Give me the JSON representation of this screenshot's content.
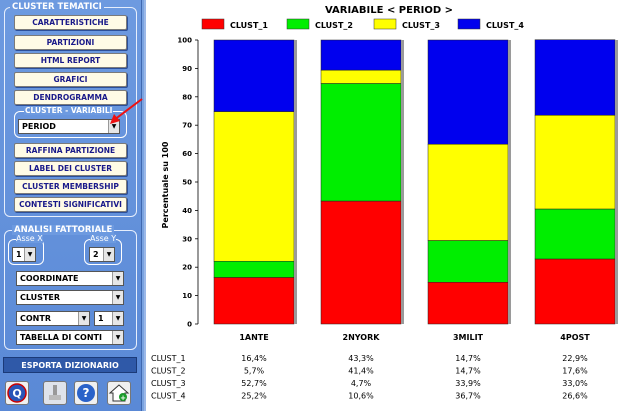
{
  "left_panel": {
    "cluster_group": {
      "title": "CLUSTER TEMATICI",
      "buttons": [
        "CARATTERISTICHE",
        "PARTIZIONI",
        "HTML REPORT",
        "GRAFICI",
        "DENDROGRAMMA"
      ],
      "variabili_title": "CLUSTER - VARIABILI",
      "variabili_select": "PERIOD",
      "buttons2": [
        "RAFFINA PARTIZIONE",
        "LABEL DEI CLUSTER",
        "CLUSTER MEMBERSHIP",
        "CONTESTI SIGNIFICATIVI"
      ]
    },
    "factorial_group": {
      "title": "ANALISI FATTORIALE",
      "asse_x_label": "Asse X",
      "asse_y_label": "Asse Y",
      "asse_x_value": "1",
      "asse_y_value": "2",
      "combo1": "COORDINATE",
      "combo2": "CLUSTER",
      "combo3": "CONTR",
      "combo3b": "1",
      "combo4": "TABELLA DI CONTI"
    },
    "export_button": "ESPORTA DIZIONARIO",
    "icons": [
      "q-logo-icon",
      "tools-icon",
      "help-icon",
      "home-icon"
    ]
  },
  "chart_data": {
    "type": "bar",
    "stacked": true,
    "title": "VARIABILE < PERIOD >",
    "ylabel": "Percentuale su 100",
    "xlabel": "",
    "ylim": [
      0,
      100
    ],
    "yticks": [
      0,
      10,
      20,
      30,
      40,
      50,
      60,
      70,
      80,
      90,
      100
    ],
    "categories": [
      "1ANTE",
      "2NYORK",
      "3MILIT",
      "4POST"
    ],
    "legend_position": "top",
    "series": [
      {
        "name": "CLUST_1",
        "color": "#ff0000",
        "values": [
          16.4,
          43.3,
          14.7,
          22.9
        ],
        "labels": [
          "16,4%",
          "43,3%",
          "14,7%",
          "22,9%"
        ]
      },
      {
        "name": "CLUST_2",
        "color": "#00ee00",
        "values": [
          5.7,
          41.4,
          14.7,
          17.6
        ],
        "labels": [
          "5,7%",
          "41,4%",
          "14,7%",
          "17,6%"
        ]
      },
      {
        "name": "CLUST_3",
        "color": "#ffff00",
        "values": [
          52.7,
          4.7,
          33.9,
          33.0
        ],
        "labels": [
          "52,7%",
          "4,7%",
          "33,9%",
          "33,0%"
        ]
      },
      {
        "name": "CLUST_4",
        "color": "#0000ee",
        "values": [
          25.2,
          10.6,
          36.7,
          26.6
        ],
        "labels": [
          "25,2%",
          "10,6%",
          "36,7%",
          "26,6%"
        ]
      }
    ]
  }
}
